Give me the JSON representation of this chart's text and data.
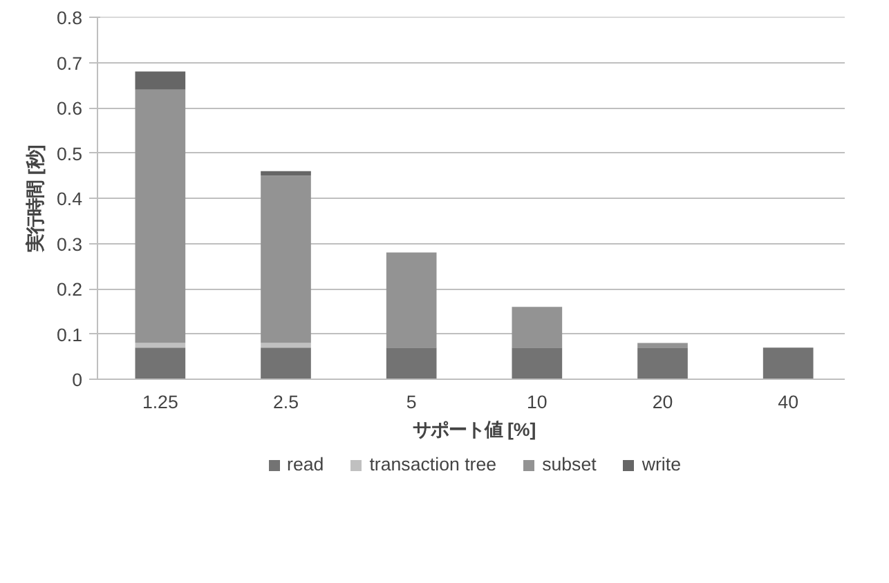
{
  "chart_data": {
    "type": "bar",
    "stacked": true,
    "xlabel": "サポート値 [%]",
    "ylabel": "実行時間 [秒]",
    "categories": [
      "1.25",
      "2.5",
      "5",
      "10",
      "20",
      "40"
    ],
    "series": [
      {
        "name": "read",
        "color": "#737373",
        "values": [
          0.07,
          0.07,
          0.07,
          0.07,
          0.07,
          0.07
        ]
      },
      {
        "name": "transaction tree",
        "color": "#c0c0c0",
        "values": [
          0.01,
          0.01,
          0,
          0,
          0,
          0
        ]
      },
      {
        "name": "subset",
        "color": "#939393",
        "values": [
          0.56,
          0.37,
          0.21,
          0.09,
          0.01,
          0
        ]
      },
      {
        "name": "write",
        "color": "#666666",
        "values": [
          0.04,
          0.01,
          0,
          0,
          0,
          0
        ]
      }
    ],
    "ylim": [
      0,
      0.8
    ],
    "yticks": [
      0,
      0.1,
      0.2,
      0.3,
      0.4,
      0.5,
      0.6,
      0.7,
      0.8
    ],
    "grid": "y",
    "legend": "bottom"
  }
}
